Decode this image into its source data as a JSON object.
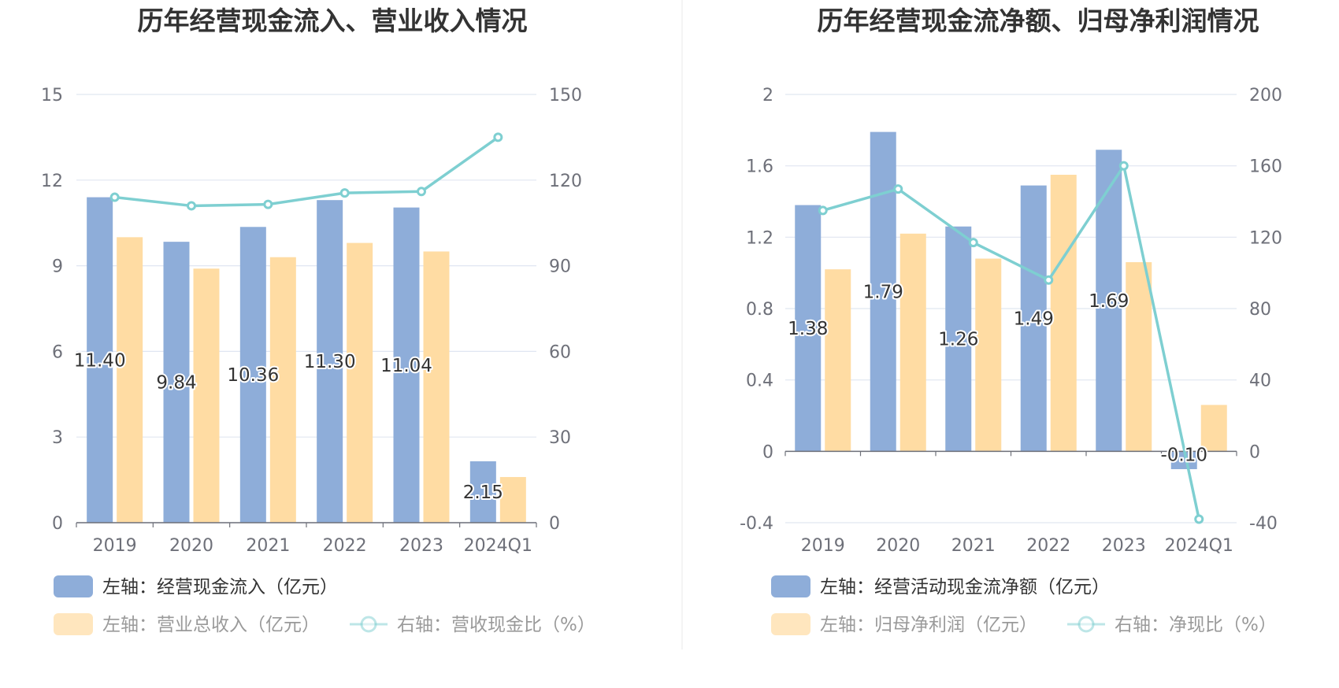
{
  "colors": {
    "bar_primary": "#8eadd9",
    "bar_secondary": "#ffdca3",
    "line": "#7ecfd1",
    "grid": "#e0e6f1",
    "axis": "#6e7079"
  },
  "chart_data": [
    {
      "type": "bar",
      "title": "历年经营现金流入、营业收入情况",
      "categories": [
        "2019",
        "2020",
        "2021",
        "2022",
        "2023",
        "2024Q1"
      ],
      "left_axis": {
        "min": 0,
        "max": 15,
        "ticks": [
          "0",
          "3",
          "6",
          "9",
          "12",
          "15"
        ]
      },
      "right_axis": {
        "min": 0,
        "max": 150,
        "ticks": [
          "0",
          "30",
          "60",
          "90",
          "120",
          "150"
        ]
      },
      "grid": true,
      "series": [
        {
          "name": "左轴：经营现金流入（亿元）",
          "kind": "bar",
          "axis": "left",
          "values": [
            11.4,
            9.84,
            10.36,
            11.3,
            11.04,
            2.15
          ],
          "labels": [
            "11.40",
            "9.84",
            "10.36",
            "11.30",
            "11.04",
            "2.15"
          ]
        },
        {
          "name": "左轴：营业总收入（亿元）",
          "kind": "bar",
          "axis": "left",
          "values": [
            10.0,
            8.9,
            9.3,
            9.8,
            9.5,
            1.6
          ]
        },
        {
          "name": "右轴：营收现金比（%）",
          "kind": "line",
          "axis": "right",
          "values": [
            114,
            111,
            111.5,
            115.5,
            116,
            135
          ]
        }
      ],
      "legend_position": "bottom-left"
    },
    {
      "type": "bar",
      "title": "历年经营现金流净额、归母净利润情况",
      "categories": [
        "2019",
        "2020",
        "2021",
        "2022",
        "2023",
        "2024Q1"
      ],
      "left_axis": {
        "min": -0.4,
        "max": 2,
        "ticks": [
          "-0.4",
          "0",
          "0.4",
          "0.8",
          "1.2",
          "1.6",
          "2"
        ]
      },
      "right_axis": {
        "min": -40,
        "max": 200,
        "ticks": [
          "-40",
          "0",
          "40",
          "80",
          "120",
          "160",
          "200"
        ]
      },
      "grid": true,
      "series": [
        {
          "name": "左轴：经营活动现金流净额（亿元）",
          "kind": "bar",
          "axis": "left",
          "values": [
            1.38,
            1.79,
            1.26,
            1.49,
            1.69,
            -0.1
          ],
          "labels": [
            "1.38",
            "1.79",
            "1.26",
            "1.49",
            "1.69",
            "-0.10"
          ]
        },
        {
          "name": "左轴：归母净利润（亿元）",
          "kind": "bar",
          "axis": "left",
          "values": [
            1.02,
            1.22,
            1.08,
            1.55,
            1.06,
            0.26
          ]
        },
        {
          "name": "右轴：净现比（%）",
          "kind": "line",
          "axis": "right",
          "values": [
            135,
            147,
            117,
            96,
            160,
            -38
          ]
        }
      ],
      "legend_position": "bottom-left"
    }
  ]
}
